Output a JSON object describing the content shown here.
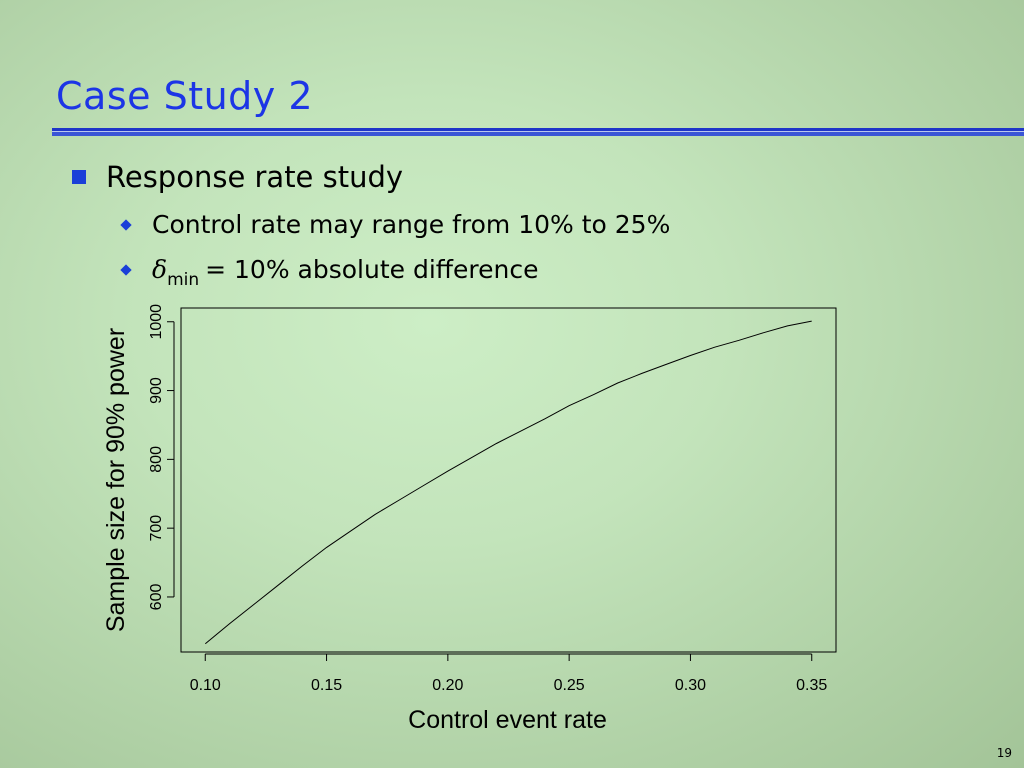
{
  "slide": {
    "title": "Case Study 2",
    "bullet": "Response rate study",
    "sub_bullets": [
      "Control rate may range from 10% to 25%"
    ],
    "delta_symbol": "δ",
    "delta_subscript": "min",
    "delta_text": "= 10% absolute difference",
    "page_number": "19"
  },
  "colors": {
    "title": "#1c35e6",
    "bullet": "#1a3fd8",
    "line": "#000000"
  },
  "chart_data": {
    "type": "line",
    "title": "",
    "xlabel": "Control event rate",
    "ylabel": "Sample size for 90% power",
    "xlim": [
      0.09,
      0.36
    ],
    "ylim": [
      520,
      1020
    ],
    "x_ticks": [
      0.1,
      0.15,
      0.2,
      0.25,
      0.3,
      0.35
    ],
    "x_tick_labels": [
      "0.10",
      "0.15",
      "0.20",
      "0.25",
      "0.30",
      "0.35"
    ],
    "y_ticks": [
      600,
      700,
      800,
      900,
      1000
    ],
    "y_tick_labels": [
      "600",
      "700",
      "800",
      "900",
      "1000"
    ],
    "grid": false,
    "legend": "none",
    "series": [
      {
        "x": [
          0.1,
          0.11,
          0.12,
          0.13,
          0.14,
          0.15,
          0.16,
          0.17,
          0.18,
          0.19,
          0.2,
          0.21,
          0.22,
          0.23,
          0.24,
          0.25,
          0.26,
          0.27,
          0.28,
          0.29,
          0.3,
          0.31,
          0.32,
          0.33,
          0.34,
          0.35
        ],
        "y": [
          532,
          561,
          589,
          617,
          645,
          672,
          696,
          720,
          741,
          762,
          783,
          803,
          823,
          841,
          859,
          878,
          894,
          911,
          925,
          938,
          951,
          963,
          973,
          984,
          994,
          1001
        ]
      }
    ]
  }
}
